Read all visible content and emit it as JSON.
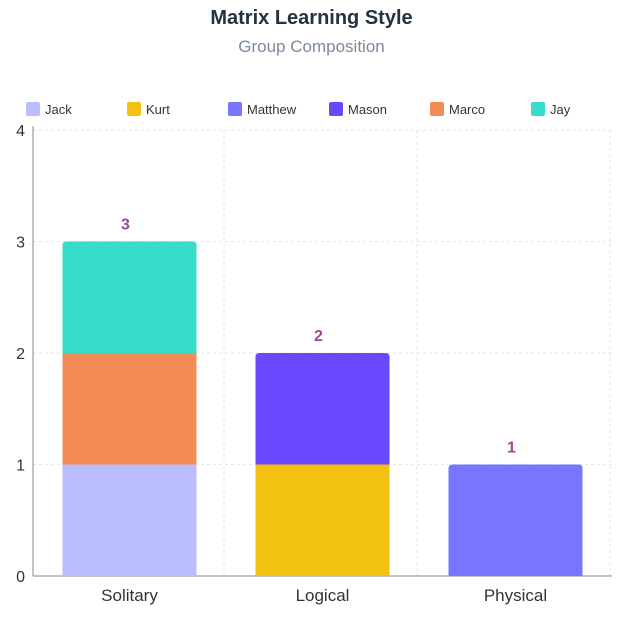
{
  "title": "Matrix Learning Style",
  "subtitle": "Group Composition",
  "chart_data": {
    "type": "bar",
    "stacked": true,
    "title": "Matrix Learning Style",
    "subtitle": "Group Composition",
    "categories": [
      "Solitary",
      "Logical",
      "Physical"
    ],
    "series": [
      {
        "name": "Jack",
        "color": "#babcfd",
        "values": [
          1,
          0,
          0
        ]
      },
      {
        "name": "Kurt",
        "color": "#f2c112",
        "values": [
          0,
          1,
          0
        ]
      },
      {
        "name": "Matthew",
        "color": "#7876fe",
        "values": [
          0,
          0,
          1
        ]
      },
      {
        "name": "Mason",
        "color": "#6a48fe",
        "values": [
          0,
          1,
          0
        ]
      },
      {
        "name": "Marco",
        "color": "#f28b56",
        "values": [
          1,
          0,
          0
        ]
      },
      {
        "name": "Jay",
        "color": "#38dccb",
        "values": [
          1,
          0,
          0
        ]
      }
    ],
    "totals": [
      3,
      2,
      1
    ],
    "ylim": [
      0,
      4
    ],
    "yticks": [
      0,
      1,
      2,
      3,
      4
    ],
    "grid": true,
    "legend_position": "top"
  }
}
